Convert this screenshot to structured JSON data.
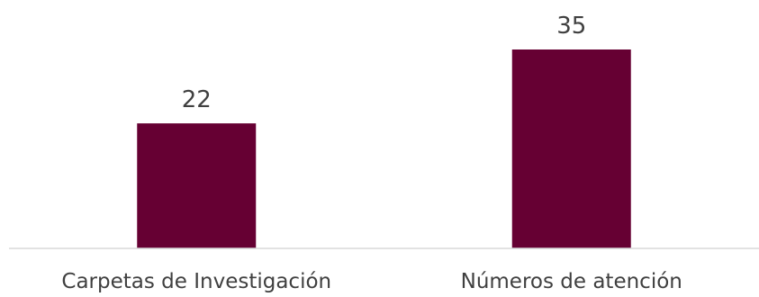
{
  "chart_data": {
    "type": "bar",
    "title": "",
    "xlabel": "",
    "ylabel": "",
    "categories": [
      "Carpetas de Investigación",
      "Números de atención"
    ],
    "values": [
      22,
      35
    ],
    "ylim": [
      0,
      35
    ],
    "grid": false,
    "legend": "none",
    "data_labels": true,
    "colors": {
      "bar": "#660033",
      "baseline": "#d9d9d9",
      "text": "#404040"
    }
  }
}
